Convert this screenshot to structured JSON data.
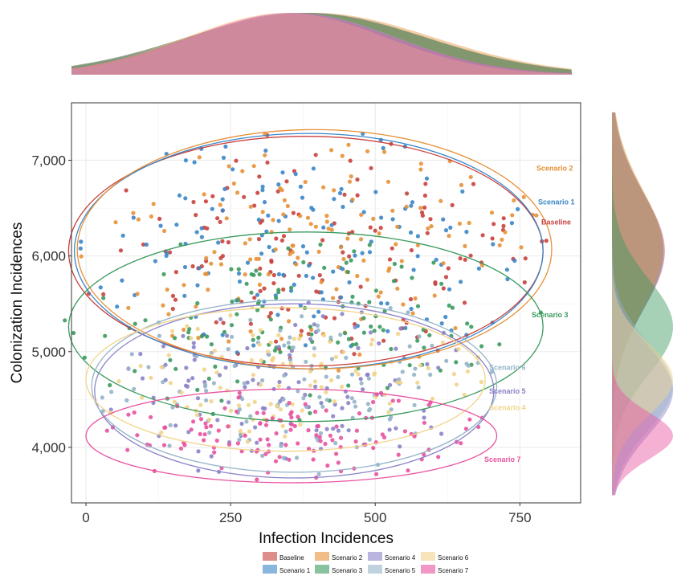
{
  "chart_data": {
    "type": "scatter",
    "xlabel": "Infection Incidences",
    "ylabel": "Colonization Incidences",
    "xlim": [
      -25,
      855
    ],
    "ylim": [
      3420,
      7600
    ],
    "x_ticks": [
      {
        "value": 0,
        "label": "0"
      },
      {
        "value": 250,
        "label": "250"
      },
      {
        "value": 500,
        "label": "500"
      },
      {
        "value": 750,
        "label": "750"
      }
    ],
    "y_ticks": [
      {
        "value": 4000,
        "label": "4,000"
      },
      {
        "value": 5000,
        "label": "5,000"
      },
      {
        "value": 6000,
        "label": "6,000"
      },
      {
        "value": 7000,
        "label": "7,000"
      }
    ],
    "grid": true,
    "legend_position": "bottom",
    "marginal_density": {
      "top": "x",
      "right": "y"
    },
    "series": [
      {
        "name": "Baseline",
        "color": "#c9413d",
        "x_mean": 380,
        "y_mean": 6050,
        "x_halfwidth": 410,
        "y_halfwidth": 1200
      },
      {
        "name": "Scenario 1",
        "color": "#3a86c8",
        "x_mean": 385,
        "y_mean": 6050,
        "x_halfwidth": 405,
        "y_halfwidth": 1230
      },
      {
        "name": "Scenario 2",
        "color": "#e69138",
        "x_mean": 395,
        "y_mean": 6070,
        "x_halfwidth": 410,
        "y_halfwidth": 1250
      },
      {
        "name": "Scenario 3",
        "color": "#3b9a5e",
        "x_mean": 380,
        "y_mean": 5260,
        "x_halfwidth": 410,
        "y_halfwidth": 990
      },
      {
        "name": "Scenario 4",
        "color": "#8a83c8",
        "x_mean": 360,
        "y_mean": 4590,
        "x_halfwidth": 345,
        "y_halfwidth": 910
      },
      {
        "name": "Scenario 5",
        "color": "#94b4c8",
        "x_mean": 360,
        "y_mean": 4640,
        "x_halfwidth": 350,
        "y_halfwidth": 900
      },
      {
        "name": "Scenario 6",
        "color": "#f2d48a",
        "x_mean": 345,
        "y_mean": 4710,
        "x_halfwidth": 345,
        "y_halfwidth": 750
      },
      {
        "name": "Scenario 7",
        "color": "#e8529f",
        "x_mean": 355,
        "y_mean": 4120,
        "x_halfwidth": 355,
        "y_halfwidth": 490
      }
    ],
    "annotations": [
      "Scenario 2",
      "Scenario 1",
      "Baseline",
      "Scenario 3",
      "Scenario 6",
      "Scenario 5",
      "Scenario 4",
      "Scenario 7"
    ]
  }
}
